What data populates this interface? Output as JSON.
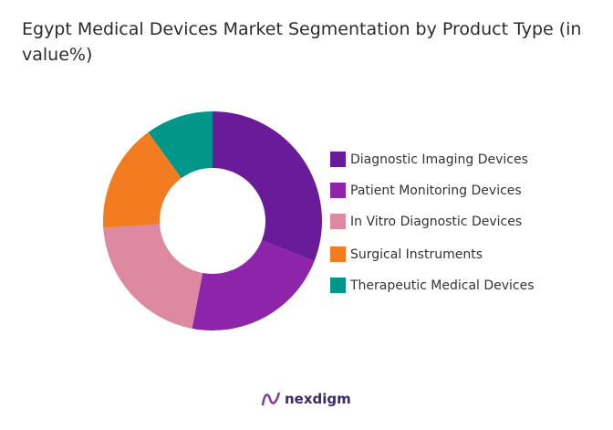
{
  "chart_data": {
    "type": "pie",
    "variant": "donut",
    "title": "Egypt Medical Devices Market Segmentation by Product Type (in value%)",
    "categories": [
      "Diagnostic Imaging Devices",
      "Patient Monitoring Devices",
      "In Vitro Diagnostic Devices",
      "Surgical Instruments",
      "Therapeutic Medical Devices"
    ],
    "values": [
      31,
      22,
      21,
      16,
      10
    ],
    "colors": [
      "#6a1b9a",
      "#8e24aa",
      "#de89a2",
      "#f47c20",
      "#009688"
    ],
    "legend_position": "right"
  },
  "brand": {
    "name": "nexdigm"
  }
}
